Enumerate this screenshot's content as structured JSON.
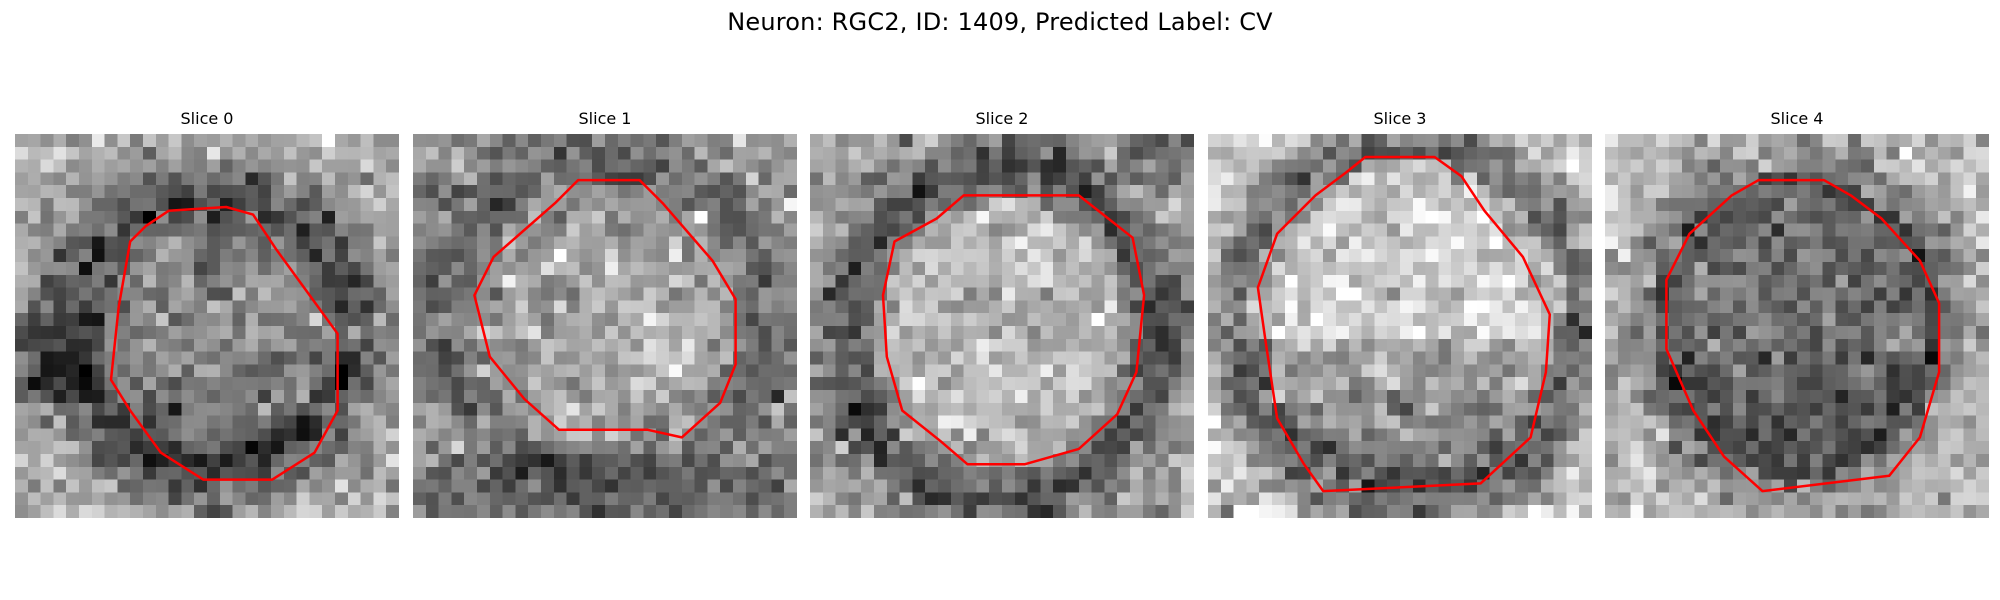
{
  "figure": {
    "title": "Neuron: RGC2, ID: 1409, Predicted Label: CV"
  },
  "slices": [
    {
      "title": "Slice 0",
      "pattern": "dark-ring-dark-interior",
      "contour_color": "#ff0000"
    },
    {
      "title": "Slice 1",
      "pattern": "mottled-bright-center",
      "contour_color": "#ff0000"
    },
    {
      "title": "Slice 2",
      "pattern": "bright-center-dark-ring",
      "contour_color": "#ff0000"
    },
    {
      "title": "Slice 3",
      "pattern": "bright-top-dark-bottom",
      "contour_color": "#ff0000"
    },
    {
      "title": "Slice 4",
      "pattern": "dark-center",
      "contour_color": "#ff0000"
    }
  ],
  "colormap": "grayscale",
  "grid_cells": 30
}
